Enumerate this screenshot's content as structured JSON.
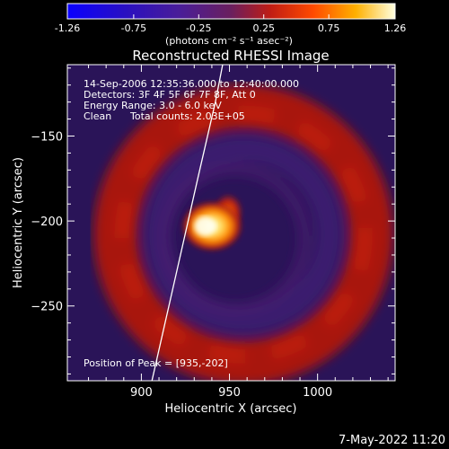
{
  "colorbar": {
    "ticks": [
      "-1.26",
      "-0.75",
      "-0.25",
      "0.25",
      "0.75",
      "1.26"
    ],
    "tick_values": [
      -1.26,
      -0.75,
      -0.25,
      0.25,
      0.75,
      1.26
    ],
    "range": [
      -1.26,
      1.26
    ],
    "unit_label": "(photons cm⁻² s⁻¹ asec⁻²)"
  },
  "chart_data": {
    "type": "heatmap",
    "title": "Reconstructed RHESSI Image",
    "xlabel": "Heliocentric X (arcsec)",
    "ylabel": "Heliocentric Y (arcsec)",
    "xlim": [
      858,
      1044
    ],
    "ylim": [
      -294,
      -108
    ],
    "xticks": [
      900,
      950,
      1000
    ],
    "xtick_labels": [
      "900",
      "950",
      "1000"
    ],
    "yticks": [
      -150,
      -200,
      -250
    ],
    "ytick_labels": [
      "−150",
      "−200",
      "−250"
    ],
    "grid": false,
    "colormap": [
      "#0000ff",
      "#3a1a8f",
      "#5a2d7a",
      "#c81e0a",
      "#ff9a00",
      "#ffffff"
    ],
    "source": {
      "x": 935,
      "y": -202
    },
    "ring": {
      "center_x": 958,
      "center_y": -208,
      "inner_radius_arcsec": 60,
      "outer_radius_arcsec": 85
    },
    "limb_line": [
      {
        "x": 906,
        "y": -294
      },
      {
        "x": 920,
        "y": -230
      },
      {
        "x": 932,
        "y": -175
      },
      {
        "x": 942,
        "y": -130
      },
      {
        "x": 948,
        "y": -98
      }
    ]
  },
  "info": {
    "time_range": "14-Sep-2006 12:35:36.000 to 12:40:00.000",
    "detectors": "Detectors: 3F 4F 5F 6F 7F 8F, Att 0",
    "energy": "Energy Range: 3.0 - 6.0 keV",
    "algorithm": "Clean",
    "total_counts": "Total counts: 2.03E+05",
    "peak": "Position of Peak = [935,-202]"
  },
  "footer": {
    "date": "7-May-2022 11:20"
  }
}
